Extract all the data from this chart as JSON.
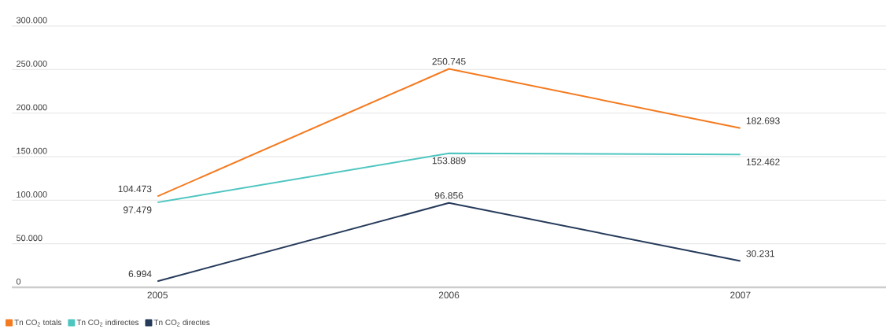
{
  "chart_data": {
    "type": "line",
    "categories": [
      "2005",
      "2006",
      "2007"
    ],
    "series": [
      {
        "name": "Tn CO$_{2}$ totals",
        "color": "#f47b20",
        "values": [
          104473,
          250745,
          182693
        ],
        "value_labels": [
          "104.473",
          "250.745",
          "182.693"
        ]
      },
      {
        "name": "Tn CO$_{2}$ indirectes",
        "color": "#4fc6c0",
        "values": [
          97479,
          153889,
          152462
        ],
        "value_labels": [
          "97.479",
          "153.889",
          "152.462"
        ]
      },
      {
        "name": "Tn CO$_{2}$ directes",
        "color": "#263a5a",
        "values": [
          6994,
          96856,
          30231
        ],
        "value_labels": [
          "6.994",
          "96.856",
          "30.231"
        ]
      }
    ],
    "ylim": [
      0,
      300000
    ],
    "yticks": [
      {
        "value": 0,
        "label": "0"
      },
      {
        "value": 50000,
        "label": "50.000"
      },
      {
        "value": 100000,
        "label": "100.000"
      },
      {
        "value": 150000,
        "label": "150.000"
      },
      {
        "value": 200000,
        "label": "200.000"
      },
      {
        "value": 250000,
        "label": "250.000"
      },
      {
        "value": 300000,
        "label": "300.000"
      }
    ],
    "grid": "y",
    "legend": "bottom left"
  }
}
